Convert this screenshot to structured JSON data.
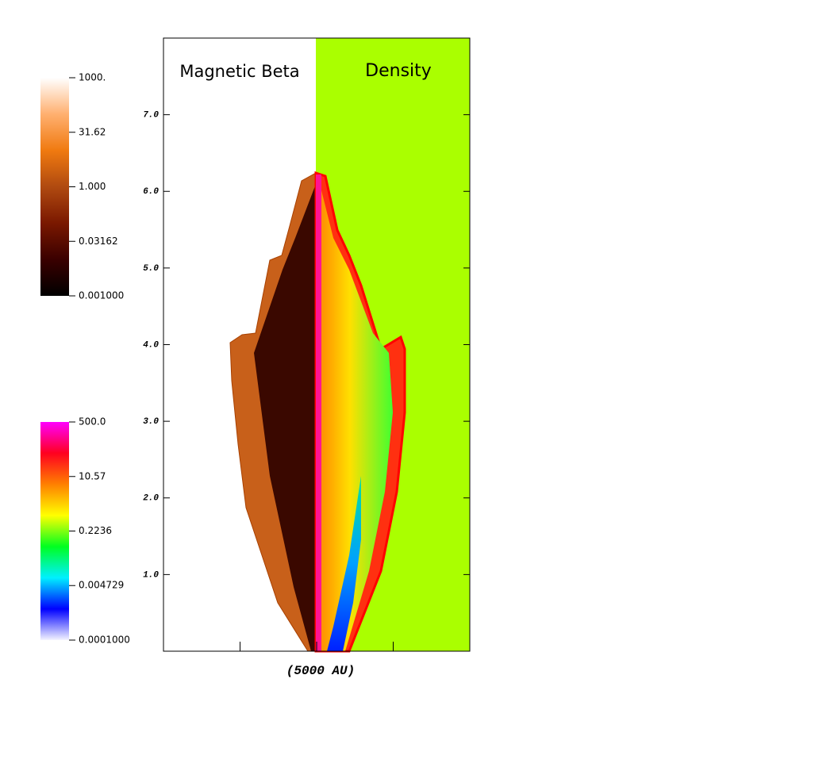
{
  "chart_data": {
    "type": "image",
    "panels": [
      "Magnetic Beta",
      "Density"
    ],
    "xlabel": "(5000 AU)",
    "xlim": [
      -2,
      2
    ],
    "xticks": [
      -1,
      0,
      1
    ],
    "ylim": [
      0,
      8
    ],
    "yticks": [
      {
        "value": 1,
        "label": "1.0"
      },
      {
        "value": 2,
        "label": "2.0"
      },
      {
        "value": 3,
        "label": "3.0"
      },
      {
        "value": 4,
        "label": "4.0"
      },
      {
        "value": 5,
        "label": "5.0"
      },
      {
        "value": 6,
        "label": "6.0"
      },
      {
        "value": 7,
        "label": "7.0"
      }
    ],
    "colorbars": [
      {
        "log": true,
        "lim": [
          0.001,
          1000
        ],
        "ticks": [
          {
            "value": 1000,
            "label": "1000."
          },
          {
            "value": 31.62,
            "label": "31.62"
          },
          {
            "value": 1,
            "label": "1.000"
          },
          {
            "value": 0.03162,
            "label": "0.03162"
          },
          {
            "value": 0.001,
            "label": "0.001000"
          }
        ],
        "colors": [
          "#000000",
          "#3a0000",
          "#7a1800",
          "#b04a10",
          "#f07a10",
          "#ffb070",
          "#ffffff"
        ]
      },
      {
        "log": true,
        "lim": [
          0.0001,
          500
        ],
        "ticks": [
          {
            "value": 500,
            "label": "500.0"
          },
          {
            "value": 10.57,
            "label": "10.57"
          },
          {
            "value": 0.2236,
            "label": "0.2236"
          },
          {
            "value": 0.004729,
            "label": "0.004729"
          },
          {
            "value": 0.0001,
            "label": "0.0001000"
          }
        ],
        "colors": [
          "#f4f4ff",
          "#0000ff",
          "#00f0ff",
          "#00ff20",
          "#ffff00",
          "#ff8000",
          "#ff0020",
          "#ff00ff"
        ]
      }
    ]
  }
}
